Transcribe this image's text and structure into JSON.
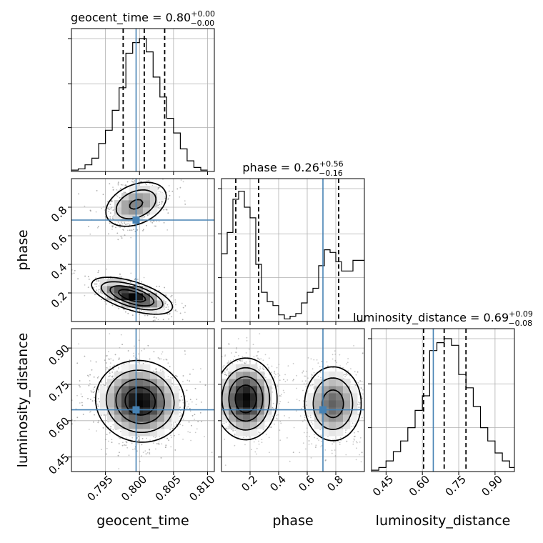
{
  "chart_data": {
    "type": "corner",
    "parameters": [
      {
        "name": "geocent_time",
        "title": {
          "prefix": "geocent_time = 0.80",
          "sup": "+0.00",
          "sub": "−0.00"
        },
        "range": [
          0.79,
          0.811
        ],
        "ticks": [
          0.795,
          0.8,
          0.805,
          0.81
        ],
        "tick_labels": [
          "0.795",
          "0.800",
          "0.805",
          "0.810"
        ],
        "truth": 0.7995,
        "quantiles": [
          0.7976,
          0.8007,
          0.8037
        ],
        "hist": {
          "edges": [
            0.79,
            0.791,
            0.792,
            0.793,
            0.794,
            0.795,
            0.796,
            0.797,
            0.798,
            0.799,
            0.8,
            0.801,
            0.802,
            0.803,
            0.804,
            0.805,
            0.806,
            0.807,
            0.808,
            0.809,
            0.81
          ],
          "heights": [
            0.01,
            0.02,
            0.05,
            0.1,
            0.21,
            0.31,
            0.46,
            0.63,
            0.89,
            0.97,
            1.0,
            0.9,
            0.71,
            0.56,
            0.4,
            0.29,
            0.17,
            0.08,
            0.03,
            0.01
          ]
        }
      },
      {
        "name": "phase",
        "title": {
          "prefix": "phase = 0.26",
          "sup": "+0.56",
          "sub": "−0.16"
        },
        "range": [
          0.0,
          1.0
        ],
        "ticks": [
          0.2,
          0.4,
          0.6,
          0.8
        ],
        "tick_labels": [
          "0.2",
          "0.4",
          "0.6",
          "0.8"
        ],
        "truth": 0.71,
        "quantiles": [
          0.1,
          0.26,
          0.82
        ],
        "hist": {
          "edges": [
            0.0,
            0.04,
            0.08,
            0.12,
            0.16,
            0.2,
            0.24,
            0.28,
            0.32,
            0.36,
            0.4,
            0.44,
            0.48,
            0.52,
            0.56,
            0.6,
            0.64,
            0.68,
            0.72,
            0.76,
            0.8,
            0.84,
            0.88,
            0.92,
            0.96,
            1.0
          ],
          "heights": [
            0.51,
            0.67,
            0.92,
            0.98,
            0.86,
            0.78,
            0.43,
            0.22,
            0.15,
            0.12,
            0.05,
            0.02,
            0.04,
            0.06,
            0.14,
            0.22,
            0.25,
            0.42,
            0.54,
            0.52,
            0.45,
            0.38,
            0.38,
            0.46,
            0.46
          ]
        }
      },
      {
        "name": "luminosity_distance",
        "title": {
          "prefix": "luminosity_distance = 0.69",
          "sup": "+0.09",
          "sub": "−0.08"
        },
        "range": [
          0.39,
          0.98
        ],
        "ticks": [
          0.45,
          0.6,
          0.75,
          0.9
        ],
        "tick_labels": [
          "0.45",
          "0.60",
          "0.75",
          "0.90"
        ],
        "truth": 0.645,
        "quantiles": [
          0.605,
          0.69,
          0.78
        ],
        "hist": {
          "edges": [
            0.39,
            0.42,
            0.45,
            0.48,
            0.51,
            0.54,
            0.57,
            0.6,
            0.63,
            0.66,
            0.69,
            0.72,
            0.75,
            0.78,
            0.81,
            0.84,
            0.87,
            0.9,
            0.93,
            0.96,
            0.98
          ],
          "heights": [
            0.01,
            0.03,
            0.08,
            0.15,
            0.23,
            0.33,
            0.46,
            0.57,
            0.91,
            0.97,
            1.0,
            0.95,
            0.73,
            0.63,
            0.49,
            0.33,
            0.23,
            0.14,
            0.08,
            0.03
          ]
        }
      }
    ],
    "pairs": [
      {
        "x": "geocent_time",
        "y": "phase",
        "truth_marker": [
          0.7995,
          0.71
        ],
        "modes": [
          {
            "center": [
              0.7989,
              0.18
            ],
            "sx": 0.003,
            "sy": 0.065,
            "rho": -0.6,
            "weight": 1.0
          },
          {
            "center": [
              0.7995,
              0.82
            ],
            "sx": 0.0026,
            "sy": 0.09,
            "rho": 0.35,
            "weight": 0.6
          }
        ]
      },
      {
        "x": "geocent_time",
        "y": "luminosity_distance",
        "truth_marker": [
          0.7995,
          0.645
        ],
        "modes": [
          {
            "center": [
              0.8001,
              0.68
            ],
            "sx": 0.0033,
            "sy": 0.085,
            "rho": -0.05,
            "weight": 1.0
          }
        ]
      },
      {
        "x": "phase",
        "y": "luminosity_distance",
        "truth_marker": [
          0.71,
          0.645
        ],
        "modes": [
          {
            "center": [
              0.17,
              0.69
            ],
            "sx": 0.11,
            "sy": 0.085,
            "rho": 0.0,
            "weight": 1.0
          },
          {
            "center": [
              0.78,
              0.67
            ],
            "sx": 0.11,
            "sy": 0.085,
            "rho": 0.0,
            "weight": 0.7
          }
        ]
      }
    ],
    "colors": {
      "truth": "#4682b4",
      "hist": "#000000",
      "quantile": "#000000",
      "grid": "#b0b0b0",
      "density": "#000000"
    },
    "grid": true
  }
}
